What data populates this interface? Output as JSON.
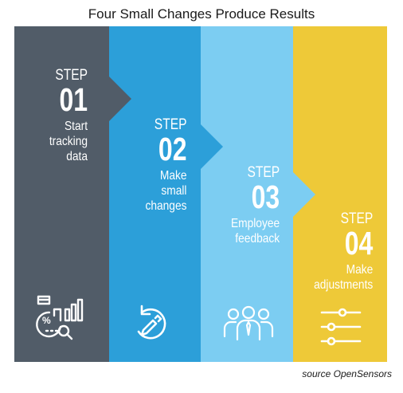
{
  "title": "Four Small Changes Produce Results",
  "source": "source OpenSensors",
  "steps": [
    {
      "word": "STEP",
      "number": "01",
      "label_lines": [
        "Start",
        "tracking",
        "data"
      ],
      "color": "#515c68",
      "icon": "analytics-icon"
    },
    {
      "word": "STEP",
      "number": "02",
      "label_lines": [
        "Make",
        "small",
        "changes"
      ],
      "color": "#2c9fd9",
      "icon": "edit-refresh-icon"
    },
    {
      "word": "STEP",
      "number": "03",
      "label_lines": [
        "Employee",
        "feedback"
      ],
      "color": "#7ccdf2",
      "icon": "people-icon"
    },
    {
      "word": "STEP",
      "number": "04",
      "label_lines": [
        "Make",
        "adjustments"
      ],
      "color": "#eec938",
      "icon": "sliders-icon"
    }
  ]
}
